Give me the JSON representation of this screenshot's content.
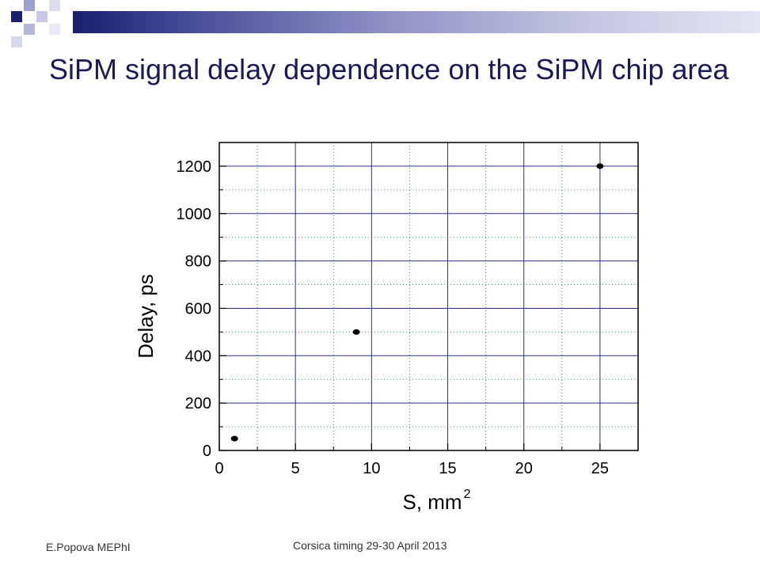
{
  "slide": {
    "title": "SiPM signal delay dependence on the SiPM chip area",
    "footer_left": "E.Popova MEPhI",
    "footer_center": "Corsica timing 29-30 April 2013"
  },
  "colors": {
    "accent_dark": "#1a1f6e",
    "title": "#1a1a5a",
    "major_grid": "#2a2f8f",
    "minor_grid": "#22aa44"
  },
  "chart_data": {
    "type": "scatter",
    "xlabel": "S, mm",
    "xlabel_superscript": "2",
    "ylabel": "Delay, ps",
    "xlim": [
      0,
      27.5
    ],
    "ylim": [
      0,
      1300
    ],
    "xticks": [
      0,
      5,
      10,
      15,
      20,
      25
    ],
    "yticks": [
      0,
      200,
      400,
      600,
      800,
      1000,
      1200
    ],
    "grid": true,
    "series": [
      {
        "x": [
          1,
          9,
          25
        ],
        "y": [
          50,
          500,
          1200
        ]
      }
    ]
  }
}
